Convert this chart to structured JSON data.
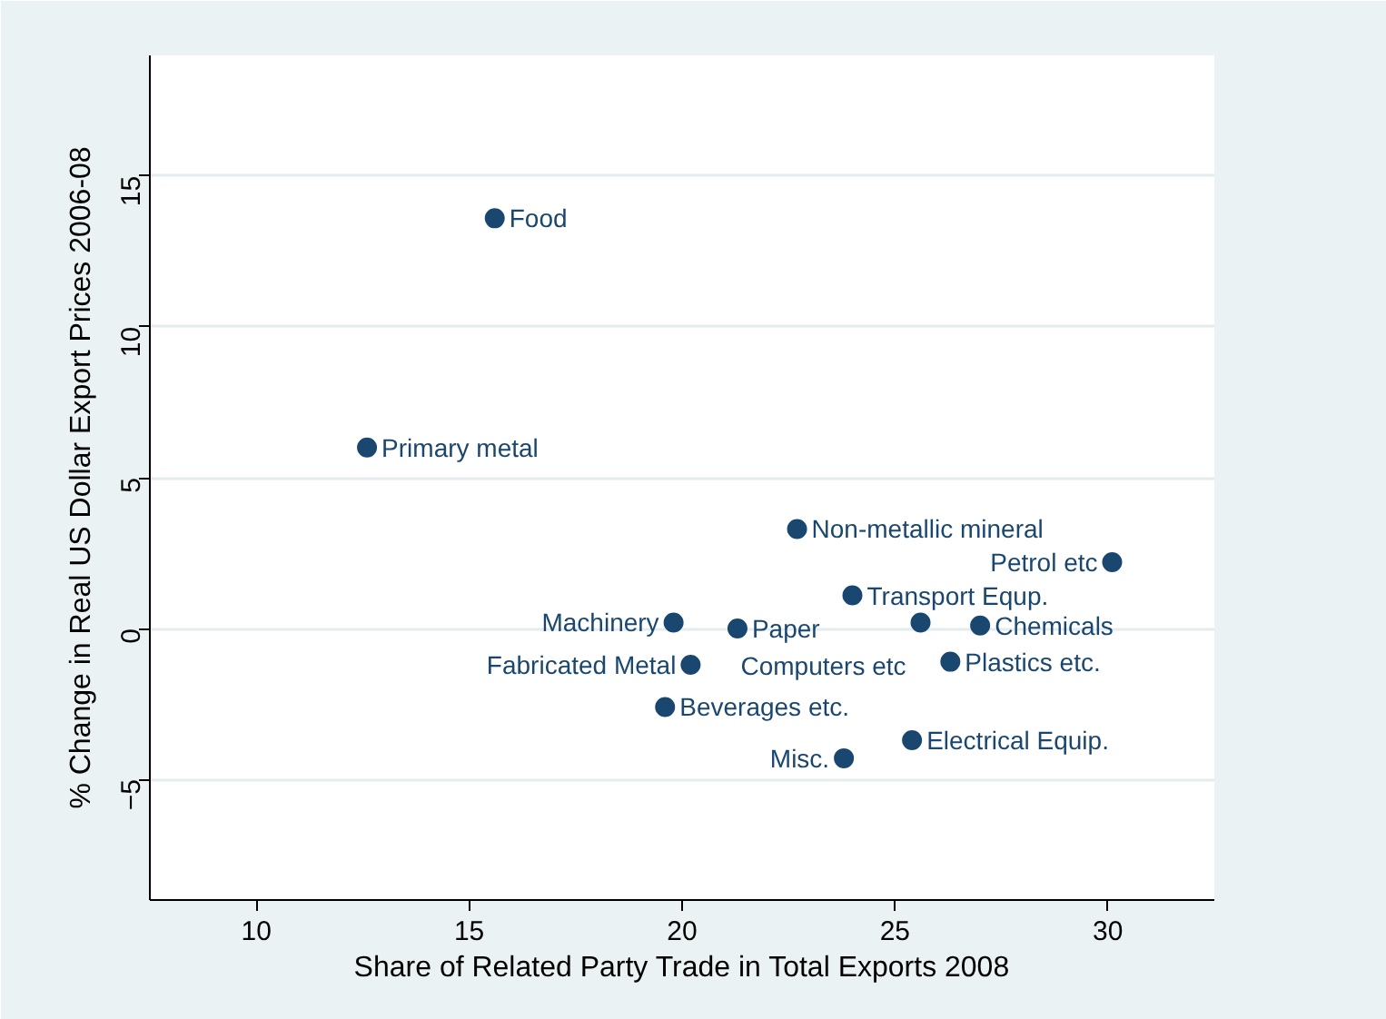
{
  "chart_data": {
    "type": "scatter",
    "xlabel": "Share of Related Party Trade in Total Exports 2008",
    "ylabel": "% Change in Real US Dollar Export Prices 2006-08",
    "x": [
      15.6,
      12.6,
      22.7,
      30.1,
      24.0,
      19.8,
      21.3,
      25.6,
      27.0,
      20.2,
      26.3,
      19.6,
      25.4,
      23.8
    ],
    "series": [
      {
        "color": "#1a476f",
        "values": [
          13.6,
          6.0,
          3.3,
          2.2,
          1.1,
          0.2,
          0.0,
          0.2,
          0.1,
          -1.2,
          -1.1,
          -2.6,
          -3.7,
          -4.3
        ]
      }
    ],
    "annotations": [
      {
        "text": "Food",
        "x": 15.6,
        "y": 13.6
      },
      {
        "text": "Primary metal",
        "x": 12.6,
        "y": 6.0
      },
      {
        "text": "Non-metallic mineral",
        "x": 22.7,
        "y": 3.3
      },
      {
        "text": "Petrol etc",
        "x": 30.1,
        "y": 2.2
      },
      {
        "text": "Transport Equp.",
        "x": 24.0,
        "y": 1.1
      },
      {
        "text": "Machinery",
        "x": 19.8,
        "y": 0.2
      },
      {
        "text": "Paper",
        "x": 21.3,
        "y": 0.0
      },
      {
        "text": "Computers etc",
        "x": 25.6,
        "y": 0.2
      },
      {
        "text": "Chemicals",
        "x": 27.0,
        "y": 0.1
      },
      {
        "text": "Fabricated Metal",
        "x": 20.2,
        "y": -1.2
      },
      {
        "text": "Plastics etc.",
        "x": 26.3,
        "y": -1.1
      },
      {
        "text": "Beverages etc.",
        "x": 19.6,
        "y": -2.6
      },
      {
        "text": "Electrical Equip.",
        "x": 25.4,
        "y": -3.7
      },
      {
        "text": "Misc.",
        "x": 23.8,
        "y": -4.3
      }
    ],
    "xlim": [
      7.5,
      32.5
    ],
    "ylim": [
      -9,
      19
    ],
    "xticks": [
      10,
      15,
      20,
      25,
      30
    ],
    "yticks": [
      -5,
      0,
      5,
      10,
      15
    ],
    "grid": "y",
    "marker": "circle"
  }
}
